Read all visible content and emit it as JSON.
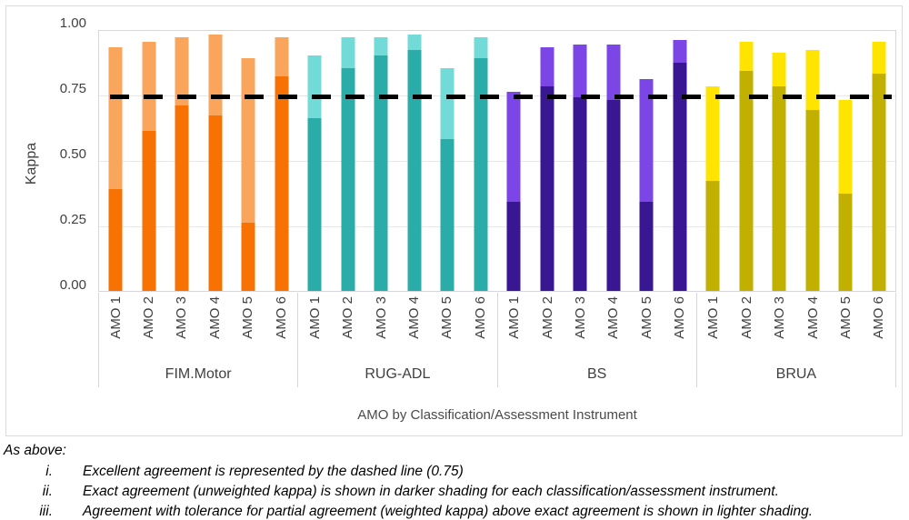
{
  "chart_data": {
    "type": "bar",
    "subtype": "stacked-grouped-vertical",
    "title": "",
    "xlabel": "AMO by Classification/Assessment Instrument",
    "ylabel": "Kappa",
    "ylim": [
      0.0,
      1.0
    ],
    "yticks": [
      1.0,
      0.75,
      0.5,
      0.25,
      0.0
    ],
    "ytick_labels": [
      "1.00",
      "0.75",
      "0.50",
      "0.25",
      "0.00"
    ],
    "grid": true,
    "legend": "none",
    "reference_line": {
      "value": 0.75,
      "style": "dashed",
      "color": "#000000",
      "meaning": "Excellent agreement threshold"
    },
    "categories": [
      "AMO 1",
      "AMO 2",
      "AMO 3",
      "AMO 4",
      "AMO 5",
      "AMO 6"
    ],
    "series_semantics": {
      "exact_kappa": "Exact agreement (unweighted kappa), darker shading, bottom segment",
      "weighted_kappa_total": "Agreement with tolerance for partial agreement (weighted kappa), lighter shading, bar top"
    },
    "groups": [
      {
        "label": "FIM.Motor",
        "color_dark": "#f87203",
        "color_light": "#faa55c",
        "exact_kappa": [
          0.39,
          0.61,
          0.71,
          0.67,
          0.26,
          0.82
        ],
        "weighted_kappa_total": [
          0.93,
          0.95,
          0.97,
          0.98,
          0.89,
          0.97
        ]
      },
      {
        "label": "RUG-ADL",
        "color_dark": "#2aaca8",
        "color_light": "#72dbd8",
        "exact_kappa": [
          0.66,
          0.85,
          0.9,
          0.92,
          0.58,
          0.89
        ],
        "weighted_kappa_total": [
          0.9,
          0.97,
          0.97,
          0.98,
          0.85,
          0.97
        ]
      },
      {
        "label": "BS",
        "color_dark": "#3a1792",
        "color_light": "#7c45e6",
        "exact_kappa": [
          0.34,
          0.78,
          0.74,
          0.73,
          0.34,
          0.87
        ],
        "weighted_kappa_total": [
          0.76,
          0.93,
          0.94,
          0.94,
          0.81,
          0.96
        ]
      },
      {
        "label": "BRUA",
        "color_dark": "#c2b000",
        "color_light": "#ffe400",
        "exact_kappa": [
          0.42,
          0.84,
          0.78,
          0.69,
          0.37,
          0.83
        ],
        "weighted_kappa_total": [
          0.78,
          0.95,
          0.91,
          0.92,
          0.73,
          0.95
        ]
      }
    ]
  },
  "axes": {
    "y_title": "Kappa",
    "x_title": "AMO by Classification/Assessment Instrument"
  },
  "footnotes": {
    "header": "As above:",
    "items": [
      {
        "num": "i.",
        "text": "Excellent agreement is represented by the dashed line (0.75)"
      },
      {
        "num": "ii.",
        "text": "Exact agreement (unweighted kappa) is shown in darker shading for each classification/assessment instrument."
      },
      {
        "num": "iii.",
        "text": "Agreement with tolerance for partial agreement (weighted kappa) above exact agreement is shown in lighter shading."
      }
    ]
  },
  "colors": {
    "gridline": "#e7e7eb",
    "panel_border": "#d6d6dc",
    "figure_border": "#d9d9de",
    "axis_text": "#404040",
    "reference_line": "#000000",
    "background": "#ffffff"
  }
}
